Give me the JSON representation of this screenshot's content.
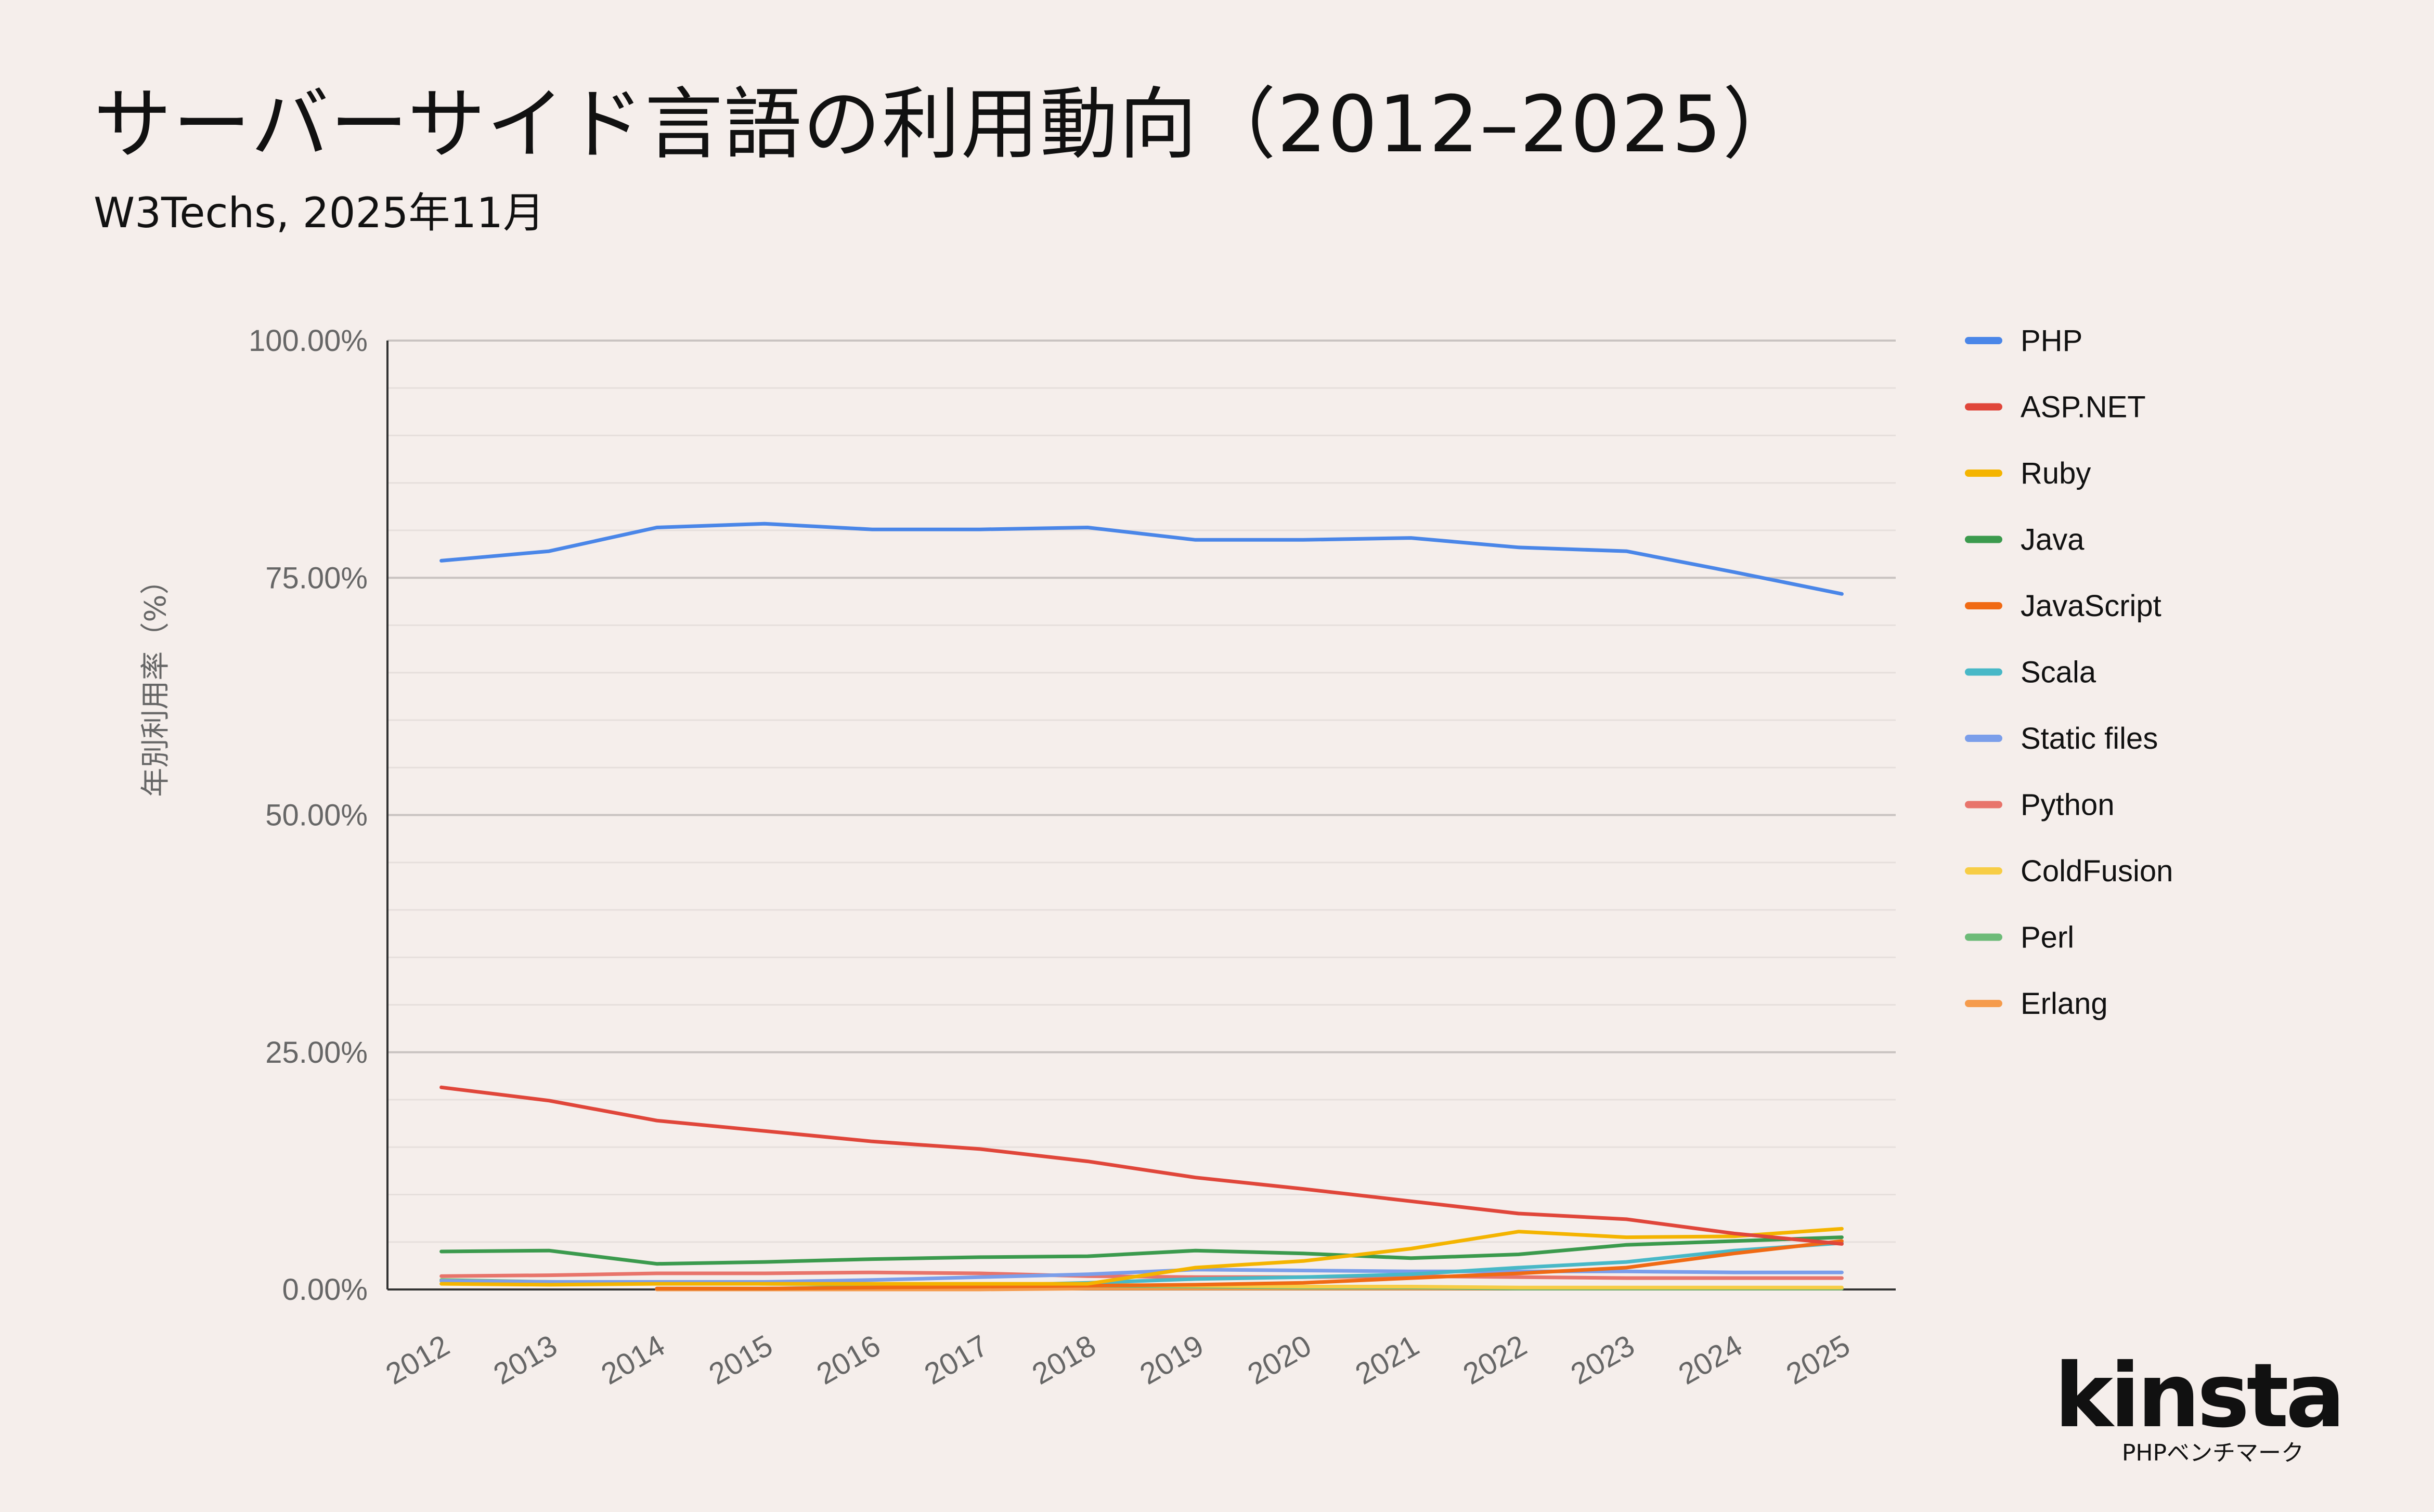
{
  "header": {
    "title": "サーバーサイド言語の利用動向（2012–2025）",
    "subtitle": "W3Techs, 2025年11月"
  },
  "logo": {
    "word": "kinsta",
    "sub": "PHPベンチマーク"
  },
  "chart_data": {
    "type": "line",
    "title": "サーバーサイド言語の利用動向（2012–2025）",
    "subtitle": "W3Techs, 2025年11月",
    "xlabel": "",
    "ylabel": "年別利用率（%）",
    "ylim": [
      0,
      100
    ],
    "y_ticks": [
      "0.00%",
      "25.00%",
      "50.00%",
      "75.00%",
      "100.00%"
    ],
    "grid": true,
    "legend_position": "right",
    "x": [
      "2012",
      "2013",
      "2014",
      "2015",
      "2016",
      "2017",
      "2018",
      "2019",
      "2020",
      "2021",
      "2022",
      "2023",
      "2024",
      "2025"
    ],
    "series": [
      {
        "name": "PHP",
        "color": "#4a86e8",
        "values": [
          76.8,
          77.8,
          80.3,
          80.7,
          80.1,
          80.1,
          80.3,
          79.0,
          79.0,
          79.2,
          78.2,
          77.8,
          75.6,
          73.3
        ]
      },
      {
        "name": "ASP.NET",
        "color": "#e0463a",
        "values": [
          21.3,
          19.9,
          17.8,
          16.7,
          15.6,
          14.8,
          13.5,
          11.8,
          10.6,
          9.3,
          8.0,
          7.4,
          5.9,
          4.8
        ]
      },
      {
        "name": "Ruby",
        "color": "#f4b400",
        "values": [
          0.6,
          0.5,
          0.6,
          0.6,
          0.6,
          0.6,
          0.6,
          2.3,
          3.0,
          4.3,
          6.1,
          5.5,
          5.6,
          6.4
        ]
      },
      {
        "name": "Java",
        "color": "#3b9a4d",
        "values": [
          4.0,
          4.1,
          2.7,
          2.9,
          3.2,
          3.4,
          3.5,
          4.1,
          3.8,
          3.3,
          3.7,
          4.7,
          5.1,
          5.5
        ]
      },
      {
        "name": "JavaScript",
        "color": "#f06a14",
        "values": [
          null,
          null,
          0.1,
          0.1,
          0.2,
          0.3,
          0.4,
          0.5,
          0.7,
          1.2,
          1.7,
          2.3,
          3.8,
          5.1
        ]
      },
      {
        "name": "Scala",
        "color": "#48b8c7",
        "values": [
          null,
          null,
          0.1,
          0.1,
          0.2,
          0.4,
          0.7,
          1.1,
          1.3,
          1.6,
          2.3,
          2.9,
          4.1,
          4.9
        ]
      },
      {
        "name": "Static files",
        "color": "#7b9eea",
        "values": [
          0.9,
          0.8,
          0.8,
          0.8,
          1.0,
          1.3,
          1.6,
          2.1,
          2.0,
          1.9,
          1.9,
          1.9,
          1.8,
          1.8
        ]
      },
      {
        "name": "Python",
        "color": "#e8746b",
        "values": [
          1.4,
          1.5,
          1.7,
          1.7,
          1.8,
          1.7,
          1.4,
          1.3,
          1.3,
          1.4,
          1.3,
          1.2,
          1.2,
          1.2
        ]
      },
      {
        "name": "ColdFusion",
        "color": "#f7cd45",
        "values": [
          0.9,
          0.8,
          0.7,
          0.6,
          0.6,
          0.5,
          0.5,
          0.4,
          0.3,
          0.3,
          0.2,
          0.2,
          0.2,
          0.2
        ]
      },
      {
        "name": "Perl",
        "color": "#6dbb78",
        "values": [
          1.0,
          0.8,
          0.7,
          0.6,
          0.5,
          0.4,
          0.4,
          0.3,
          0.2,
          0.2,
          0.1,
          0.1,
          0.1,
          0.1
        ]
      },
      {
        "name": "Erlang",
        "color": "#f59b4c",
        "values": [
          null,
          null,
          0.0,
          0.0,
          0.0,
          0.0,
          0.1,
          0.1,
          0.1,
          0.1,
          0.1,
          0.1,
          0.1,
          0.1
        ]
      }
    ]
  }
}
